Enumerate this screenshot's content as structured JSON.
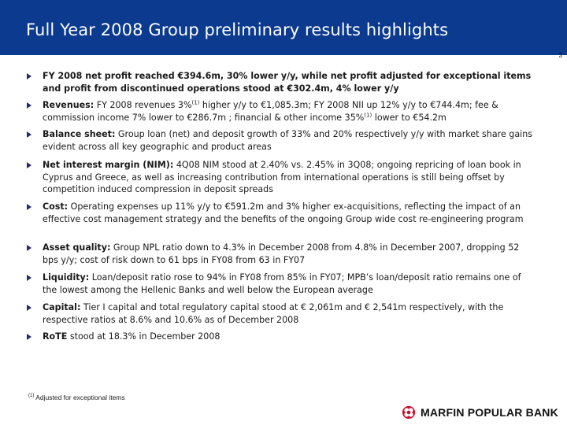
{
  "header": {
    "title": "Full Year 2008 Group preliminary results highlights"
  },
  "page_number": "3",
  "bullets": [
    {
      "label": "FY 2008 net profit reached €394.6m, 30% lower y/y, while net profit adjusted for exceptional items and profit from discontinued operations stood at €302.4m, 4% lower y/y",
      "pre": "",
      "sup1": "",
      "mid": "",
      "sup2": "",
      "post": ""
    },
    {
      "label": "Revenues:",
      "pre": " FY 2008 revenues 3%",
      "sup1": "(1)",
      "mid": " higher y/y to €1,085.3m; FY 2008 NII up 12% y/y to €744.4m; fee & commission income 7% lower to €286.7m ; financial & other income 35%",
      "sup2": "(1)",
      "post": " lower to €54.2m"
    },
    {
      "label": "Balance sheet:",
      "pre": " Group loan (net) and deposit growth of 33% and 20% respectively y/y with market share gains evident across all key geographic and product areas",
      "sup1": "",
      "mid": "",
      "sup2": "",
      "post": ""
    },
    {
      "label": "Net interest margin (NIM):",
      "pre": " 4Q08 NIM stood at 2.40% vs. 2.45% in 3Q08; ongoing repricing of loan book in Cyprus and Greece, as well as increasing contribution from international operations is still being offset by competition induced compression in deposit spreads",
      "sup1": "",
      "mid": "",
      "sup2": "",
      "post": ""
    },
    {
      "label": "Cost:",
      "pre": " Operating expenses up 11% y/y to €591.2m and 3% higher ex-acquisitions, reflecting the impact of an effective cost management strategy and the benefits of the ongoing Group wide cost re-engineering program",
      "sup1": "",
      "mid": "",
      "sup2": "",
      "post": ""
    },
    {
      "label": "Asset quality:",
      "pre": "  Group NPL ratio down to 4.3% in December 2008 from 4.8% in December 2007, dropping 52 bps y/y; cost of risk down to 61 bps in FY08 from 63 in FY07",
      "sup1": "",
      "mid": "",
      "sup2": "",
      "post": ""
    },
    {
      "label": "Liquidity:",
      "pre": " Loan/deposit ratio rose to 94% in FY08 from 85% in FY07; MPB’s loan/deposit ratio remains one of the lowest among the Hellenic Banks and well below the European average",
      "sup1": "",
      "mid": "",
      "sup2": "",
      "post": ""
    },
    {
      "label": "Capital:",
      "pre": " Tier I capital and total regulatory capital stood at € 2,061m and € 2,541m respectively, with the respective ratios at 8.6% and 10.6% as of December 2008",
      "sup1": "",
      "mid": "",
      "sup2": "",
      "post": ""
    },
    {
      "label": "RoTE",
      "pre": " stood at 18.3% in December 2008",
      "sup1": "",
      "mid": "",
      "sup2": "",
      "post": ""
    }
  ],
  "footnote": {
    "marker": "(1)",
    "text": " Adjusted for exceptional items"
  },
  "logo": {
    "text": "MARFIN POPULAR BANK",
    "icon": "marfin-popular-bank-logo-icon"
  },
  "colors": {
    "header_bg": "#0b3a8f",
    "header_text": "#ffffff",
    "logo_red": "#c8102e"
  }
}
